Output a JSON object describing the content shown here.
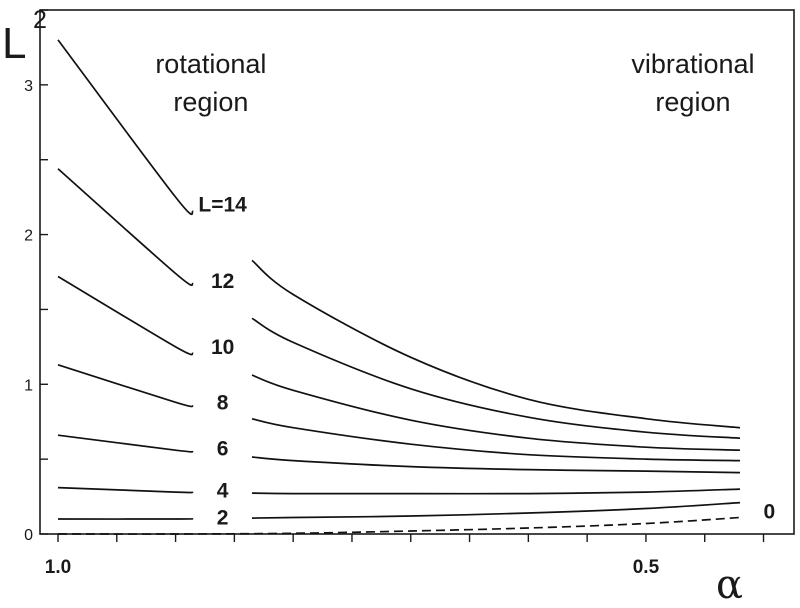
{
  "chart_data": {
    "type": "line",
    "title": "",
    "xlabel": "α",
    "ylabel": "L",
    "ylabel_superscript": "2",
    "x_reversed": true,
    "xlim": [
      1.0,
      0.36
    ],
    "ylim": [
      0,
      3.5
    ],
    "x_ticks": [
      1.0,
      0.95,
      0.9,
      0.85,
      0.8,
      0.75,
      0.7,
      0.65,
      0.6,
      0.55,
      0.5,
      0.45,
      0.4,
      0.35
    ],
    "x_tick_labels": [
      {
        "value": 1.0,
        "label": "1.0"
      },
      {
        "value": 0.5,
        "label": "0.5"
      }
    ],
    "y_ticks": [
      0,
      0.5,
      1,
      1.5,
      2,
      2.5,
      3,
      3.5
    ],
    "y_tick_labels": [
      {
        "value": 0,
        "label": "0"
      },
      {
        "value": 1,
        "label": "1"
      },
      {
        "value": 2,
        "label": "2"
      },
      {
        "value": 3,
        "label": "3"
      }
    ],
    "x": [
      1.0,
      0.9,
      0.8,
      0.7,
      0.6,
      0.5,
      0.42
    ],
    "series": [
      {
        "name": "L=14",
        "dashed": false,
        "values": [
          3.3,
          2.25,
          1.6,
          1.18,
          0.9,
          0.77,
          0.71
        ],
        "gap": [
          0.885,
          0.835
        ]
      },
      {
        "name": "L=12",
        "dashed": false,
        "values": [
          2.44,
          1.74,
          1.28,
          0.97,
          0.78,
          0.68,
          0.64
        ],
        "gap": [
          0.885,
          0.835
        ]
      },
      {
        "name": "L=10",
        "dashed": false,
        "values": [
          1.72,
          1.25,
          0.96,
          0.76,
          0.64,
          0.58,
          0.56
        ],
        "gap": [
          0.885,
          0.835
        ]
      },
      {
        "name": "L=8",
        "dashed": false,
        "values": [
          1.13,
          0.88,
          0.71,
          0.6,
          0.53,
          0.5,
          0.49
        ],
        "gap": [
          0.885,
          0.835
        ]
      },
      {
        "name": "L=6",
        "dashed": false,
        "values": [
          0.66,
          0.56,
          0.49,
          0.45,
          0.43,
          0.42,
          0.41
        ],
        "gap": [
          0.885,
          0.835
        ]
      },
      {
        "name": "L=4",
        "dashed": false,
        "values": [
          0.31,
          0.28,
          0.27,
          0.27,
          0.27,
          0.28,
          0.3
        ],
        "gap": [
          0.885,
          0.835
        ]
      },
      {
        "name": "L=2",
        "dashed": false,
        "values": [
          0.1,
          0.1,
          0.11,
          0.12,
          0.14,
          0.17,
          0.21
        ],
        "gap": [
          0.885,
          0.835
        ]
      },
      {
        "name": "L=0",
        "dashed": true,
        "values": [
          0.0,
          0.0,
          0.005,
          0.02,
          0.04,
          0.07,
          0.11
        ],
        "gap": null
      }
    ],
    "curve_labels": [
      {
        "text": "L=14",
        "x": 0.86,
        "y": 2.2
      },
      {
        "text": "12",
        "x": 0.86,
        "y": 1.69
      },
      {
        "text": "10",
        "x": 0.86,
        "y": 1.25
      },
      {
        "text": "8",
        "x": 0.86,
        "y": 0.88
      },
      {
        "text": "6",
        "x": 0.86,
        "y": 0.57
      },
      {
        "text": "4",
        "x": 0.86,
        "y": 0.29
      },
      {
        "text": "2",
        "x": 0.86,
        "y": 0.11
      },
      {
        "text": "0",
        "x": 0.395,
        "y": 0.15
      }
    ],
    "annotations": [
      {
        "id": "rotational",
        "lines": [
          "rotational",
          "region"
        ],
        "x": 0.87,
        "y": 3.08
      },
      {
        "id": "vibrational",
        "lines": [
          "vibrational",
          "region"
        ],
        "x": 0.46,
        "y": 3.08
      }
    ]
  }
}
